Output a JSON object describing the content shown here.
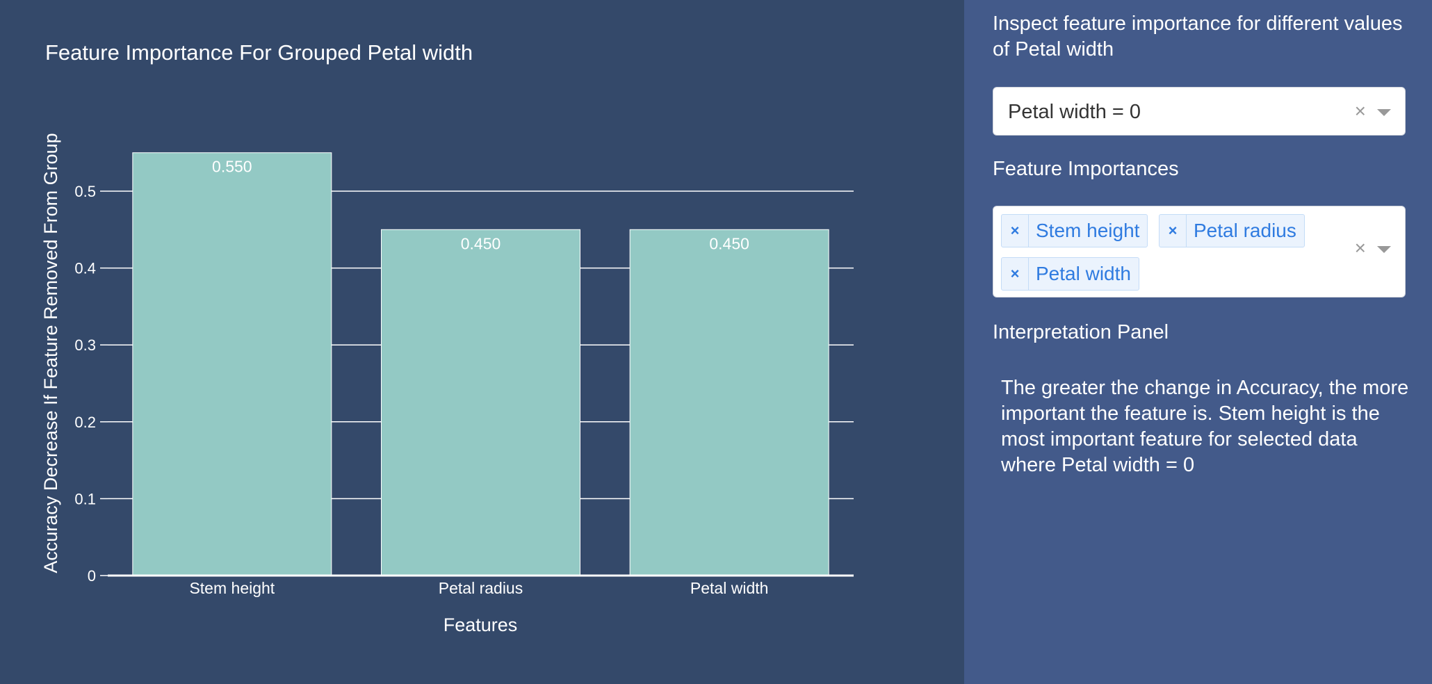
{
  "chart_data": {
    "type": "bar",
    "title": "Feature Importance For Grouped Petal width",
    "xlabel": "Features",
    "ylabel": "Accuracy Decrease If Feature Removed From Group",
    "categories": [
      "Stem height",
      "Petal radius",
      "Petal width"
    ],
    "values": [
      0.55,
      0.45,
      0.45
    ],
    "value_labels": [
      "0.550",
      "0.450",
      "0.450"
    ],
    "ylim": [
      0,
      0.55
    ],
    "yticks": [
      0,
      0.1,
      0.2,
      0.3,
      0.4,
      0.5
    ],
    "ytick_labels": [
      "0",
      "0.1",
      "0.2",
      "0.3",
      "0.4",
      "0.5"
    ],
    "grid": true,
    "bar_color": "#93c9c4",
    "background": "#34496a"
  },
  "side_panel": {
    "inspect_heading": "Inspect feature importance for different values of Petal width",
    "group_select": {
      "value": "Petal width = 0",
      "clear_symbol": "×"
    },
    "features_heading": "Feature Importances",
    "features_select": {
      "tags": [
        {
          "label": "Stem height",
          "remove_symbol": "×"
        },
        {
          "label": "Petal radius",
          "remove_symbol": "×"
        },
        {
          "label": "Petal width",
          "remove_symbol": "×"
        }
      ],
      "clear_symbol": "×"
    },
    "interpretation_heading": "Interpretation Panel",
    "interpretation_text": "The greater the change in Accuracy, the more important the feature is. Stem height is the most important feature for selected data where Petal width = 0",
    "background": "#435a8a"
  }
}
